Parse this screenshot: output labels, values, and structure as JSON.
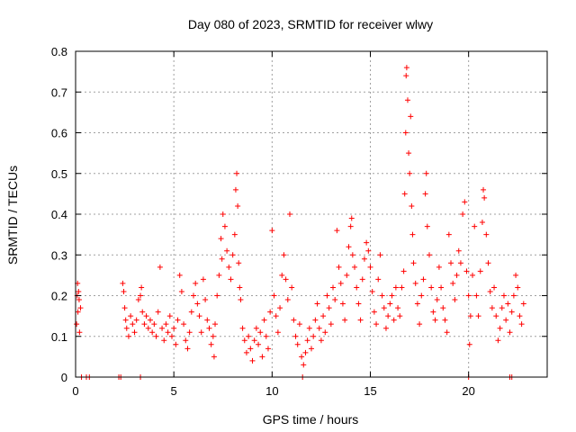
{
  "chart_data": {
    "type": "scatter",
    "title": "Day 080 of 2023, SRMTID for receiver wlwy",
    "xlabel": "GPS time / hours",
    "ylabel": "SRMTID / TECUs",
    "xlim": [
      0,
      24
    ],
    "ylim": [
      0,
      0.8
    ],
    "grid": true,
    "x_ticks": [
      0,
      5,
      10,
      15,
      20
    ],
    "y_ticks": [
      0,
      0.1,
      0.2,
      0.3,
      0.4,
      0.5,
      0.6,
      0.7,
      0.8
    ],
    "x_tick_labels": [
      "0",
      "5",
      "10",
      "15",
      "20"
    ],
    "y_tick_labels": [
      "0",
      "0.1",
      "0.2",
      "0.3",
      "0.4",
      "0.5",
      "0.6",
      "0.7",
      "0.8"
    ],
    "marker": "+",
    "series": [
      {
        "name": "SRMTID",
        "color": "#ff0000",
        "points": [
          [
            0.05,
            0.13
          ],
          [
            0.08,
            0.2
          ],
          [
            0.1,
            0.23
          ],
          [
            0.12,
            0.16
          ],
          [
            0.15,
            0.21
          ],
          [
            0.18,
            0.19
          ],
          [
            0.2,
            0.11
          ],
          [
            0.25,
            0.17
          ],
          [
            0.3,
            0.0
          ],
          [
            0.55,
            0.0
          ],
          [
            0.7,
            0.0
          ],
          [
            2.2,
            0.0
          ],
          [
            2.3,
            0.0
          ],
          [
            3.3,
            0.0
          ],
          [
            22.1,
            0.0
          ],
          [
            22.2,
            0.0
          ],
          [
            20.0,
            0.0
          ],
          [
            11.55,
            0.0
          ],
          [
            2.4,
            0.23
          ],
          [
            2.45,
            0.21
          ],
          [
            2.5,
            0.17
          ],
          [
            2.55,
            0.14
          ],
          [
            2.6,
            0.12
          ],
          [
            2.7,
            0.1
          ],
          [
            2.8,
            0.15
          ],
          [
            2.9,
            0.13
          ],
          [
            3.0,
            0.11
          ],
          [
            3.1,
            0.14
          ],
          [
            3.2,
            0.19
          ],
          [
            3.3,
            0.2
          ],
          [
            3.35,
            0.22
          ],
          [
            3.4,
            0.16
          ],
          [
            3.5,
            0.13
          ],
          [
            3.6,
            0.15
          ],
          [
            3.7,
            0.12
          ],
          [
            3.8,
            0.14
          ],
          [
            3.9,
            0.11
          ],
          [
            4.0,
            0.13
          ],
          [
            4.1,
            0.1
          ],
          [
            4.2,
            0.16
          ],
          [
            4.3,
            0.27
          ],
          [
            4.4,
            0.12
          ],
          [
            4.5,
            0.09
          ],
          [
            4.6,
            0.13
          ],
          [
            4.7,
            0.11
          ],
          [
            4.8,
            0.15
          ],
          [
            4.9,
            0.1
          ],
          [
            5.0,
            0.12
          ],
          [
            5.1,
            0.08
          ],
          [
            5.2,
            0.14
          ],
          [
            5.3,
            0.25
          ],
          [
            5.4,
            0.21
          ],
          [
            5.5,
            0.13
          ],
          [
            5.6,
            0.09
          ],
          [
            5.7,
            0.07
          ],
          [
            5.8,
            0.11
          ],
          [
            5.9,
            0.16
          ],
          [
            6.0,
            0.2
          ],
          [
            6.1,
            0.23
          ],
          [
            6.2,
            0.18
          ],
          [
            6.3,
            0.15
          ],
          [
            6.4,
            0.11
          ],
          [
            6.5,
            0.24
          ],
          [
            6.6,
            0.19
          ],
          [
            6.7,
            0.14
          ],
          [
            6.8,
            0.12
          ],
          [
            6.9,
            0.08
          ],
          [
            7.0,
            0.1
          ],
          [
            7.05,
            0.05
          ],
          [
            7.1,
            0.13
          ],
          [
            7.2,
            0.2
          ],
          [
            7.3,
            0.25
          ],
          [
            7.4,
            0.34
          ],
          [
            7.45,
            0.29
          ],
          [
            7.5,
            0.4
          ],
          [
            7.6,
            0.37
          ],
          [
            7.7,
            0.31
          ],
          [
            7.8,
            0.27
          ],
          [
            7.9,
            0.24
          ],
          [
            8.0,
            0.3
          ],
          [
            8.1,
            0.35
          ],
          [
            8.15,
            0.46
          ],
          [
            8.2,
            0.5
          ],
          [
            8.25,
            0.42
          ],
          [
            8.3,
            0.28
          ],
          [
            8.35,
            0.22
          ],
          [
            8.4,
            0.19
          ],
          [
            8.5,
            0.12
          ],
          [
            8.6,
            0.09
          ],
          [
            8.7,
            0.06
          ],
          [
            8.8,
            0.1
          ],
          [
            8.9,
            0.07
          ],
          [
            9.0,
            0.04
          ],
          [
            9.1,
            0.09
          ],
          [
            9.2,
            0.12
          ],
          [
            9.3,
            0.08
          ],
          [
            9.4,
            0.11
          ],
          [
            9.5,
            0.05
          ],
          [
            9.6,
            0.14
          ],
          [
            9.7,
            0.1
          ],
          [
            9.8,
            0.07
          ],
          [
            9.9,
            0.16
          ],
          [
            10.0,
            0.36
          ],
          [
            10.1,
            0.2
          ],
          [
            10.2,
            0.15
          ],
          [
            10.3,
            0.11
          ],
          [
            10.4,
            0.17
          ],
          [
            10.5,
            0.25
          ],
          [
            10.6,
            0.3
          ],
          [
            10.7,
            0.24
          ],
          [
            10.8,
            0.19
          ],
          [
            10.9,
            0.4
          ],
          [
            11.0,
            0.22
          ],
          [
            11.1,
            0.14
          ],
          [
            11.2,
            0.1
          ],
          [
            11.3,
            0.08
          ],
          [
            11.4,
            0.13
          ],
          [
            11.5,
            0.05
          ],
          [
            11.6,
            0.03
          ],
          [
            11.7,
            0.06
          ],
          [
            11.8,
            0.09
          ],
          [
            11.9,
            0.12
          ],
          [
            12.0,
            0.07
          ],
          [
            12.1,
            0.1
          ],
          [
            12.2,
            0.14
          ],
          [
            12.3,
            0.18
          ],
          [
            12.4,
            0.12
          ],
          [
            12.5,
            0.09
          ],
          [
            12.6,
            0.15
          ],
          [
            12.7,
            0.11
          ],
          [
            12.8,
            0.2
          ],
          [
            12.9,
            0.17
          ],
          [
            13.0,
            0.13
          ],
          [
            13.1,
            0.22
          ],
          [
            13.2,
            0.19
          ],
          [
            13.3,
            0.36
          ],
          [
            13.4,
            0.27
          ],
          [
            13.5,
            0.23
          ],
          [
            13.6,
            0.18
          ],
          [
            13.7,
            0.14
          ],
          [
            13.8,
            0.25
          ],
          [
            13.9,
            0.32
          ],
          [
            14.0,
            0.37
          ],
          [
            14.05,
            0.39
          ],
          [
            14.1,
            0.3
          ],
          [
            14.2,
            0.27
          ],
          [
            14.3,
            0.22
          ],
          [
            14.4,
            0.18
          ],
          [
            14.5,
            0.14
          ],
          [
            14.6,
            0.24
          ],
          [
            14.7,
            0.29
          ],
          [
            14.8,
            0.33
          ],
          [
            14.9,
            0.31
          ],
          [
            15.0,
            0.27
          ],
          [
            15.1,
            0.21
          ],
          [
            15.2,
            0.16
          ],
          [
            15.3,
            0.13
          ],
          [
            15.4,
            0.24
          ],
          [
            15.5,
            0.3
          ],
          [
            15.6,
            0.2
          ],
          [
            15.7,
            0.17
          ],
          [
            15.8,
            0.12
          ],
          [
            15.9,
            0.15
          ],
          [
            16.0,
            0.18
          ],
          [
            16.1,
            0.2
          ],
          [
            16.2,
            0.14
          ],
          [
            16.3,
            0.22
          ],
          [
            16.4,
            0.17
          ],
          [
            16.5,
            0.15
          ],
          [
            16.6,
            0.22
          ],
          [
            16.7,
            0.26
          ],
          [
            16.75,
            0.45
          ],
          [
            16.8,
            0.6
          ],
          [
            16.82,
            0.74
          ],
          [
            16.85,
            0.76
          ],
          [
            16.9,
            0.68
          ],
          [
            16.95,
            0.55
          ],
          [
            17.0,
            0.5
          ],
          [
            17.05,
            0.64
          ],
          [
            17.1,
            0.42
          ],
          [
            17.15,
            0.35
          ],
          [
            17.2,
            0.28
          ],
          [
            17.3,
            0.23
          ],
          [
            17.4,
            0.18
          ],
          [
            17.5,
            0.13
          ],
          [
            17.6,
            0.2
          ],
          [
            17.7,
            0.24
          ],
          [
            17.8,
            0.45
          ],
          [
            17.85,
            0.5
          ],
          [
            17.9,
            0.37
          ],
          [
            18.0,
            0.3
          ],
          [
            18.1,
            0.22
          ],
          [
            18.2,
            0.16
          ],
          [
            18.3,
            0.14
          ],
          [
            18.4,
            0.19
          ],
          [
            18.5,
            0.27
          ],
          [
            18.6,
            0.22
          ],
          [
            18.7,
            0.17
          ],
          [
            18.8,
            0.14
          ],
          [
            18.9,
            0.11
          ],
          [
            19.0,
            0.35
          ],
          [
            19.1,
            0.28
          ],
          [
            19.2,
            0.23
          ],
          [
            19.3,
            0.19
          ],
          [
            19.4,
            0.25
          ],
          [
            19.5,
            0.31
          ],
          [
            19.6,
            0.28
          ],
          [
            19.7,
            0.4
          ],
          [
            19.8,
            0.43
          ],
          [
            19.9,
            0.26
          ],
          [
            20.0,
            0.2
          ],
          [
            20.05,
            0.08
          ],
          [
            20.1,
            0.15
          ],
          [
            20.2,
            0.25
          ],
          [
            20.3,
            0.37
          ],
          [
            20.4,
            0.2
          ],
          [
            20.5,
            0.15
          ],
          [
            20.6,
            0.26
          ],
          [
            20.7,
            0.38
          ],
          [
            20.75,
            0.46
          ],
          [
            20.8,
            0.44
          ],
          [
            20.9,
            0.35
          ],
          [
            21.0,
            0.28
          ],
          [
            21.1,
            0.21
          ],
          [
            21.2,
            0.17
          ],
          [
            21.3,
            0.22
          ],
          [
            21.4,
            0.15
          ],
          [
            21.5,
            0.09
          ],
          [
            21.6,
            0.12
          ],
          [
            21.7,
            0.17
          ],
          [
            21.8,
            0.2
          ],
          [
            21.9,
            0.14
          ],
          [
            22.0,
            0.18
          ],
          [
            22.1,
            0.11
          ],
          [
            22.2,
            0.16
          ],
          [
            22.3,
            0.2
          ],
          [
            22.4,
            0.25
          ],
          [
            22.5,
            0.22
          ],
          [
            22.6,
            0.15
          ],
          [
            22.7,
            0.13
          ],
          [
            22.8,
            0.18
          ]
        ]
      }
    ]
  }
}
